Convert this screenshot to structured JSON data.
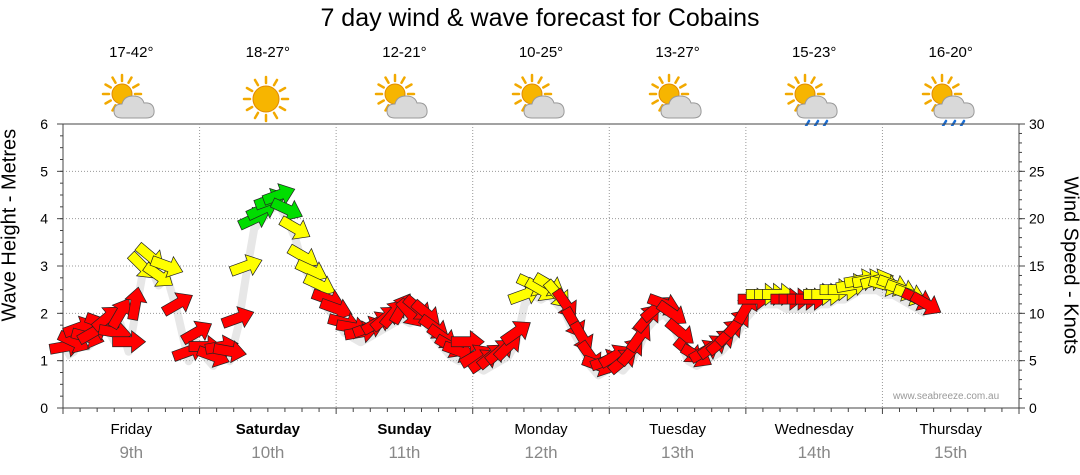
{
  "title": "7 day wind & wave forecast for Cobains",
  "watermark": "www.seabreeze.com.au",
  "days": [
    {
      "name": "Friday",
      "date": "9th",
      "temp": "17-42°",
      "icon": "partly-cloudy-icon",
      "bold": false
    },
    {
      "name": "Saturday",
      "date": "10th",
      "temp": "18-27°",
      "icon": "sunny-icon",
      "bold": true
    },
    {
      "name": "Sunday",
      "date": "11th",
      "temp": "12-21°",
      "icon": "partly-cloudy-icon",
      "bold": true
    },
    {
      "name": "Monday",
      "date": "12th",
      "temp": "10-25°",
      "icon": "partly-cloudy-icon",
      "bold": false
    },
    {
      "name": "Tuesday",
      "date": "13th",
      "temp": "13-27°",
      "icon": "partly-cloudy-icon",
      "bold": false
    },
    {
      "name": "Wednesday",
      "date": "14th",
      "temp": "15-23°",
      "icon": "rain-cloud-icon",
      "bold": false
    },
    {
      "name": "Thursday",
      "date": "15th",
      "temp": "16-20°",
      "icon": "rain-cloud-icon",
      "bold": false
    }
  ],
  "colors": {
    "light": "#ff0000",
    "moderate": "#ffff00",
    "fresh": "#00dd00"
  },
  "chart_data": {
    "type": "line",
    "ylabel_left": "Wave Height - Metres",
    "ylabel_right": "Wind Speed - Knots",
    "ylim_left": [
      0,
      6
    ],
    "ylim_right": [
      0,
      30
    ],
    "yticks_left": [
      0,
      1,
      2,
      3,
      4,
      5,
      6
    ],
    "yticks_right": [
      0,
      5,
      10,
      15,
      20,
      25,
      30
    ],
    "grid": true,
    "x_unit": "day index (0 = Friday 00:00)",
    "wind_series": [
      {
        "t": 0.02,
        "knots": 6.5,
        "dir": -10
      },
      {
        "t": 0.08,
        "knots": 7.0,
        "dir": 25
      },
      {
        "t": 0.12,
        "knots": 8.5,
        "dir": -20
      },
      {
        "t": 0.18,
        "knots": 7.5,
        "dir": 15
      },
      {
        "t": 0.22,
        "knots": 8.0,
        "dir": -30
      },
      {
        "t": 0.28,
        "knots": 9.0,
        "dir": 20
      },
      {
        "t": 0.32,
        "knots": 9.5,
        "dir": -40
      },
      {
        "t": 0.38,
        "knots": 8.0,
        "dir": 10
      },
      {
        "t": 0.42,
        "knots": 10.0,
        "dir": -60
      },
      {
        "t": 0.48,
        "knots": 7.0,
        "dir": 0
      },
      {
        "t": 0.53,
        "knots": 11.0,
        "dir": -80
      },
      {
        "t": 0.58,
        "knots": 15.0,
        "dir": 45
      },
      {
        "t": 0.64,
        "knots": 16.0,
        "dir": 40
      },
      {
        "t": 0.7,
        "knots": 14.0,
        "dir": 35
      },
      {
        "t": 0.76,
        "knots": 15.0,
        "dir": 20
      },
      {
        "t": 0.84,
        "knots": 11.0,
        "dir": -30
      },
      {
        "t": 0.92,
        "knots": 6.0,
        "dir": -20
      },
      {
        "t": 0.98,
        "knots": 8.0,
        "dir": -30
      },
      {
        "t": 1.04,
        "knots": 6.5,
        "dir": 0
      },
      {
        "t": 1.1,
        "knots": 5.5,
        "dir": 20
      },
      {
        "t": 1.16,
        "knots": 6.5,
        "dir": -10
      },
      {
        "t": 1.22,
        "knots": 6.0,
        "dir": 10
      },
      {
        "t": 1.28,
        "knots": 9.5,
        "dir": -20
      },
      {
        "t": 1.34,
        "knots": 15.0,
        "dir": -20
      },
      {
        "t": 1.4,
        "knots": 20.0,
        "dir": -25
      },
      {
        "t": 1.46,
        "knots": 21.0,
        "dir": -25
      },
      {
        "t": 1.52,
        "knots": 22.0,
        "dir": -20
      },
      {
        "t": 1.58,
        "knots": 22.5,
        "dir": -20
      },
      {
        "t": 1.64,
        "knots": 21.0,
        "dir": 25
      },
      {
        "t": 1.7,
        "knots": 19.0,
        "dir": 30
      },
      {
        "t": 1.76,
        "knots": 16.0,
        "dir": 30
      },
      {
        "t": 1.82,
        "knots": 14.5,
        "dir": 25
      },
      {
        "t": 1.88,
        "knots": 13.0,
        "dir": 25
      },
      {
        "t": 1.94,
        "knots": 11.5,
        "dir": 20
      },
      {
        "t": 2.0,
        "knots": 10.5,
        "dir": 20
      },
      {
        "t": 2.06,
        "knots": 9.0,
        "dir": 15
      },
      {
        "t": 2.12,
        "knots": 8.5,
        "dir": 10
      },
      {
        "t": 2.18,
        "knots": 8.0,
        "dir": -10
      },
      {
        "t": 2.24,
        "knots": 8.5,
        "dir": -20
      },
      {
        "t": 2.3,
        "knots": 9.0,
        "dir": -30
      },
      {
        "t": 2.36,
        "knots": 9.5,
        "dir": -40
      },
      {
        "t": 2.42,
        "knots": 10.0,
        "dir": -50
      },
      {
        "t": 2.48,
        "knots": 10.5,
        "dir": -60
      },
      {
        "t": 2.54,
        "knots": 10.0,
        "dir": 50
      },
      {
        "t": 2.6,
        "knots": 10.5,
        "dir": 40
      },
      {
        "t": 2.66,
        "knots": 10.0,
        "dir": 40
      },
      {
        "t": 2.72,
        "knots": 8.5,
        "dir": 35
      },
      {
        "t": 2.78,
        "knots": 7.5,
        "dir": 35
      },
      {
        "t": 2.84,
        "knots": 6.5,
        "dir": 30
      },
      {
        "t": 2.9,
        "knots": 6.0,
        "dir": 20
      },
      {
        "t": 2.96,
        "knots": 7.0,
        "dir": 0
      },
      {
        "t": 3.02,
        "knots": 5.5,
        "dir": -30
      },
      {
        "t": 3.08,
        "knots": 5.0,
        "dir": -35
      },
      {
        "t": 3.14,
        "knots": 5.5,
        "dir": -40
      },
      {
        "t": 3.2,
        "knots": 6.0,
        "dir": -40
      },
      {
        "t": 3.26,
        "knots": 6.5,
        "dir": -45
      },
      {
        "t": 3.32,
        "knots": 8.0,
        "dir": -35
      },
      {
        "t": 3.38,
        "knots": 12.0,
        "dir": -20
      },
      {
        "t": 3.44,
        "knots": 13.0,
        "dir": 25
      },
      {
        "t": 3.5,
        "knots": 12.5,
        "dir": 30
      },
      {
        "t": 3.56,
        "knots": 13.0,
        "dir": 30
      },
      {
        "t": 3.62,
        "knots": 12.0,
        "dir": 50
      },
      {
        "t": 3.68,
        "knots": 11.0,
        "dir": 55
      },
      {
        "t": 3.74,
        "knots": 9.0,
        "dir": 60
      },
      {
        "t": 3.8,
        "knots": 7.5,
        "dir": 60
      },
      {
        "t": 3.86,
        "knots": 5.5,
        "dir": 55
      },
      {
        "t": 3.92,
        "knots": 4.5,
        "dir": 20
      },
      {
        "t": 3.98,
        "knots": 5.0,
        "dir": -20
      },
      {
        "t": 4.04,
        "knots": 5.5,
        "dir": -30
      },
      {
        "t": 4.1,
        "knots": 5.0,
        "dir": -40
      },
      {
        "t": 4.16,
        "knots": 6.0,
        "dir": -50
      },
      {
        "t": 4.22,
        "knots": 7.5,
        "dir": -55
      },
      {
        "t": 4.28,
        "knots": 9.5,
        "dir": -50
      },
      {
        "t": 4.34,
        "knots": 10.5,
        "dir": -40
      },
      {
        "t": 4.4,
        "knots": 11.0,
        "dir": 20
      },
      {
        "t": 4.46,
        "knots": 10.0,
        "dir": 35
      },
      {
        "t": 4.52,
        "knots": 8.0,
        "dir": 40
      },
      {
        "t": 4.58,
        "knots": 6.0,
        "dir": 40
      },
      {
        "t": 4.64,
        "knots": 5.5,
        "dir": 30
      },
      {
        "t": 4.7,
        "knots": 6.0,
        "dir": -30
      },
      {
        "t": 4.76,
        "knots": 6.5,
        "dir": -35
      },
      {
        "t": 4.82,
        "knots": 7.0,
        "dir": -40
      },
      {
        "t": 4.88,
        "knots": 8.0,
        "dir": -45
      },
      {
        "t": 4.94,
        "knots": 9.0,
        "dir": -50
      },
      {
        "t": 5.0,
        "knots": 10.5,
        "dir": -60
      },
      {
        "t": 5.06,
        "knots": 11.5,
        "dir": 0
      },
      {
        "t": 5.12,
        "knots": 12.0,
        "dir": 0
      },
      {
        "t": 5.18,
        "knots": 12.0,
        "dir": 0
      },
      {
        "t": 5.24,
        "knots": 12.0,
        "dir": 0
      },
      {
        "t": 5.3,
        "knots": 11.5,
        "dir": 0
      },
      {
        "t": 5.36,
        "knots": 11.5,
        "dir": 0
      },
      {
        "t": 5.42,
        "knots": 11.5,
        "dir": 0
      },
      {
        "t": 5.48,
        "knots": 11.5,
        "dir": 0
      },
      {
        "t": 5.54,
        "knots": 12.0,
        "dir": 0
      },
      {
        "t": 5.6,
        "knots": 12.0,
        "dir": 0
      },
      {
        "t": 5.66,
        "knots": 12.5,
        "dir": 0
      },
      {
        "t": 5.72,
        "knots": 12.5,
        "dir": 0
      },
      {
        "t": 5.78,
        "knots": 13.0,
        "dir": -10
      },
      {
        "t": 5.84,
        "knots": 13.5,
        "dir": -10
      },
      {
        "t": 5.9,
        "knots": 13.5,
        "dir": -10
      },
      {
        "t": 5.96,
        "knots": 13.5,
        "dir": -15
      },
      {
        "t": 6.02,
        "knots": 13.0,
        "dir": 15
      },
      {
        "t": 6.08,
        "knots": 13.0,
        "dir": 20
      },
      {
        "t": 6.14,
        "knots": 12.5,
        "dir": 20
      },
      {
        "t": 6.2,
        "knots": 12.0,
        "dir": 20
      },
      {
        "t": 6.26,
        "knots": 11.5,
        "dir": 25
      },
      {
        "t": 6.32,
        "knots": 11.0,
        "dir": 30
      }
    ]
  }
}
